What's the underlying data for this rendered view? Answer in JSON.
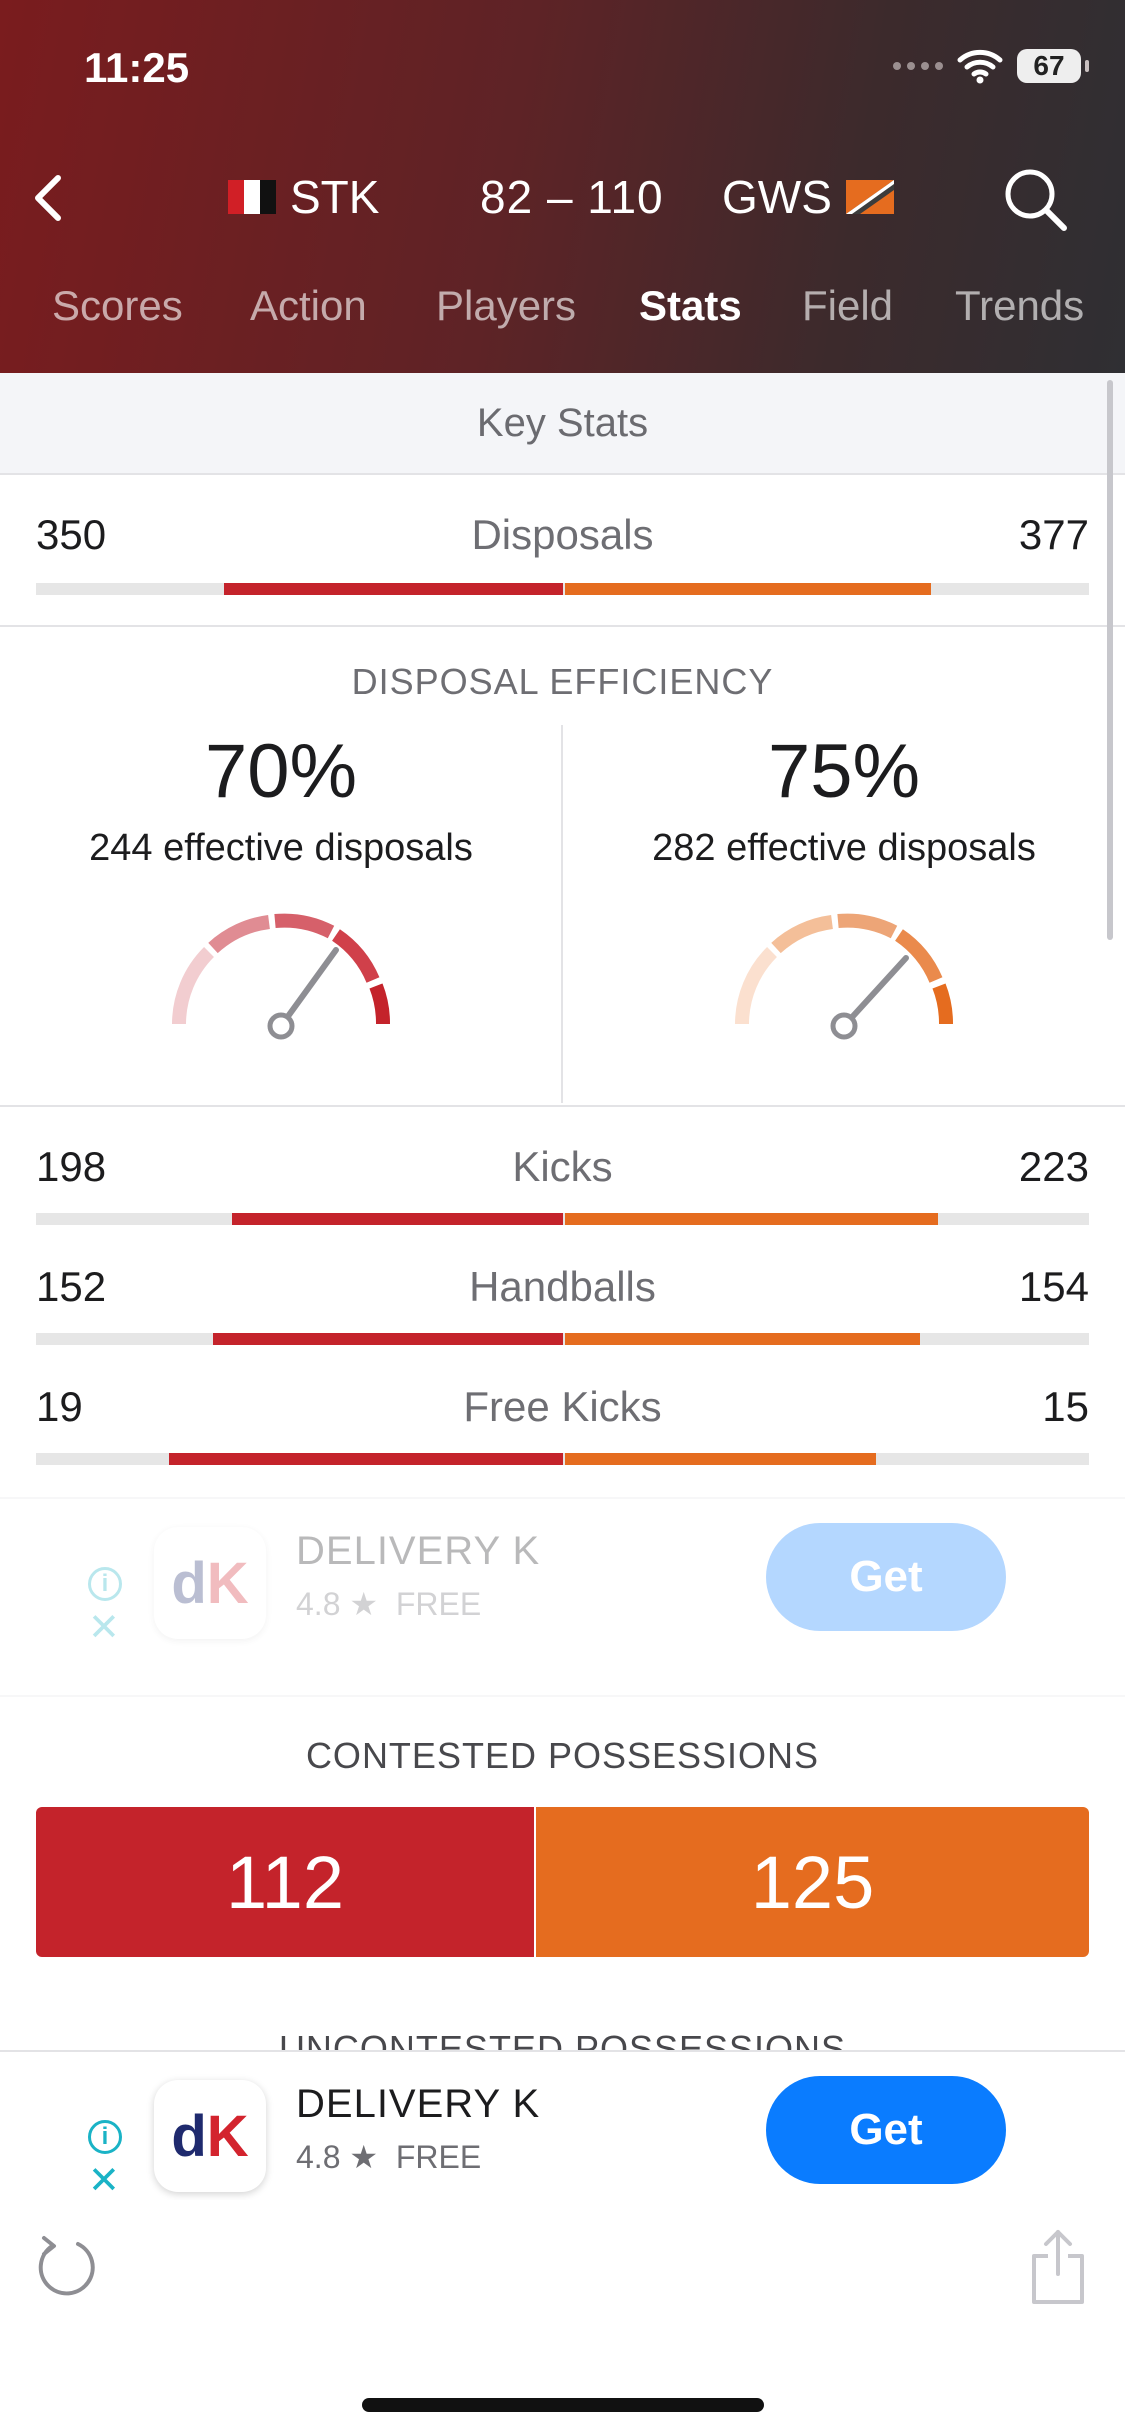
{
  "status_bar": {
    "time": "11:25",
    "battery": "67"
  },
  "header": {
    "team_home": "STK",
    "team_away": "GWS",
    "score": "82 – 110"
  },
  "tabs": [
    {
      "label": "Scores"
    },
    {
      "label": "Action"
    },
    {
      "label": "Players"
    },
    {
      "label": "Stats",
      "active": true
    },
    {
      "label": "Field"
    },
    {
      "label": "Trends"
    }
  ],
  "key_stats": {
    "title": "Key Stats"
  },
  "disposals": {
    "label": "Disposals",
    "home": 350,
    "away": 377
  },
  "disposal_efficiency": {
    "title": "DISPOSAL EFFICIENCY",
    "home": {
      "percent": "70%",
      "effective": "244 effective disposals",
      "value": 70
    },
    "away": {
      "percent": "75%",
      "effective": "282 effective disposals",
      "value": 75
    }
  },
  "stats": [
    {
      "label": "Kicks",
      "home": 198,
      "away": 223
    },
    {
      "label": "Handballs",
      "home": 152,
      "away": 154
    },
    {
      "label": "Free Kicks",
      "home": 19,
      "away": 15
    }
  ],
  "ad": {
    "app_name": "DELIVERY K",
    "rating": "4.8 ★",
    "price": "FREE",
    "cta": "Get",
    "icon_text": "dK"
  },
  "contested": {
    "title": "CONTESTED POSSESSIONS",
    "home": 112,
    "away": 125
  },
  "uncontested": {
    "title": "UNCONTESTED POSSESSIONS"
  },
  "colors": {
    "home": "#c4232b",
    "away": "#e56c1f",
    "cta": "#0a7cff"
  }
}
